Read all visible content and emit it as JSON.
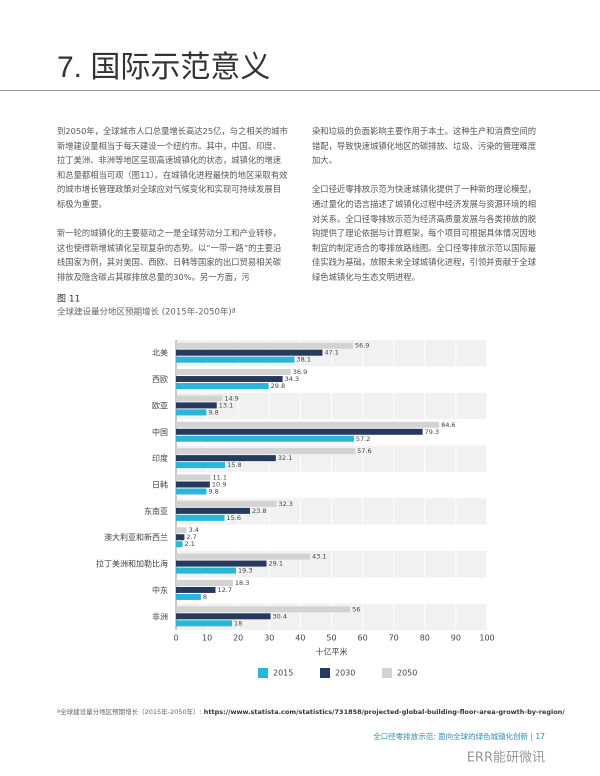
{
  "header": {
    "title": "7. 国际示范意义"
  },
  "body": {
    "left": [
      "到2050年，全球城市人口总量增长高达25亿，与之相关的城市新增建设量相当于每天建设一个纽约市。其中，中国、印度、拉丁美洲、非洲等地区呈现高速城镇化的状态，城镇化的增速和总量都相当可观（图11）。在城镇化进程最快的地区采取有效的城市增长管理政策对全球应对气候变化和实现可持续发展目标极为重要。",
      "新一轮的城镇化的主要驱动之一是全球劳动分工和产业转移，这也使得新增城镇化呈现复杂的态势。以“一带一路”的主要沿线国家为例，其对美国、西欧、日韩等国家的出口贸易相关碳排放及隐含碳占其碳排放总量的30%。另一方面，污"
    ],
    "right": [
      "染和垃圾的负面影响主要作用于本土。这种生产和消费空间的错配，导致快速城镇化地区的碳排放、垃圾、污染的管理难度加大。",
      "全口径近零排放示范为快速城镇化提供了一种新的理论模型，通过量化的语言描述了城镇化过程中经济发展与资源环境的相对关系。全口径零排放示范为经济高质量发展与各类排放的脱钩提供了理论依据与计算框架，每个项目可根据具体情况因地制宜的制定适合的零排放路线图。全口径零排放示范以国际最佳实践为基础，放眼未来全球城镇化进程，引领并贡献于全球绿色城镇化与生态文明进程。"
    ]
  },
  "figure": {
    "label": "图 11"
  },
  "chart_data": {
    "type": "bar",
    "orientation": "horizontal",
    "title": "全球建设量分地区预期增长 (2015年-2050年)ª",
    "categories": [
      "北美",
      "西欧",
      "欧亚",
      "中国",
      "印度",
      "日韩",
      "东南亚",
      "澳大利亚和新西兰",
      "拉丁美洲和加勒比海",
      "中东",
      "非洲"
    ],
    "series": [
      {
        "name": "2015",
        "color": "#29b6d9",
        "values": [
          38.1,
          29.8,
          9.8,
          57.2,
          15.8,
          9.8,
          15.6,
          2.1,
          19.3,
          8,
          18
        ]
      },
      {
        "name": "2030",
        "color": "#263a5e",
        "values": [
          47.1,
          34.3,
          13.1,
          79.3,
          32.1,
          10.9,
          23.8,
          2.7,
          29.1,
          12.7,
          30.4
        ]
      },
      {
        "name": "2050",
        "color": "#d3d3d3",
        "values": [
          56.9,
          36.9,
          14.9,
          84.6,
          57.6,
          11.1,
          32.3,
          3.4,
          43.1,
          18.3,
          56
        ]
      }
    ],
    "xlabel": "十亿平米",
    "xlim": [
      0,
      100
    ],
    "xticks": [
      0,
      10,
      20,
      30,
      40,
      50,
      60,
      70,
      80,
      90,
      100
    ],
    "grid": true,
    "legend": "bottom"
  },
  "footnote": {
    "text": "ª全球建设量分地区预期增长（2015年-2050年）: ",
    "url": "https://www.statista.com/statistics/731858/projected-global-building-floor-area-growth-by-region/"
  },
  "footer": {
    "text": "全口径零排放示范: 面向全球的绿色城镇化创新 | 17",
    "watermark": "ERR能研微讯"
  }
}
